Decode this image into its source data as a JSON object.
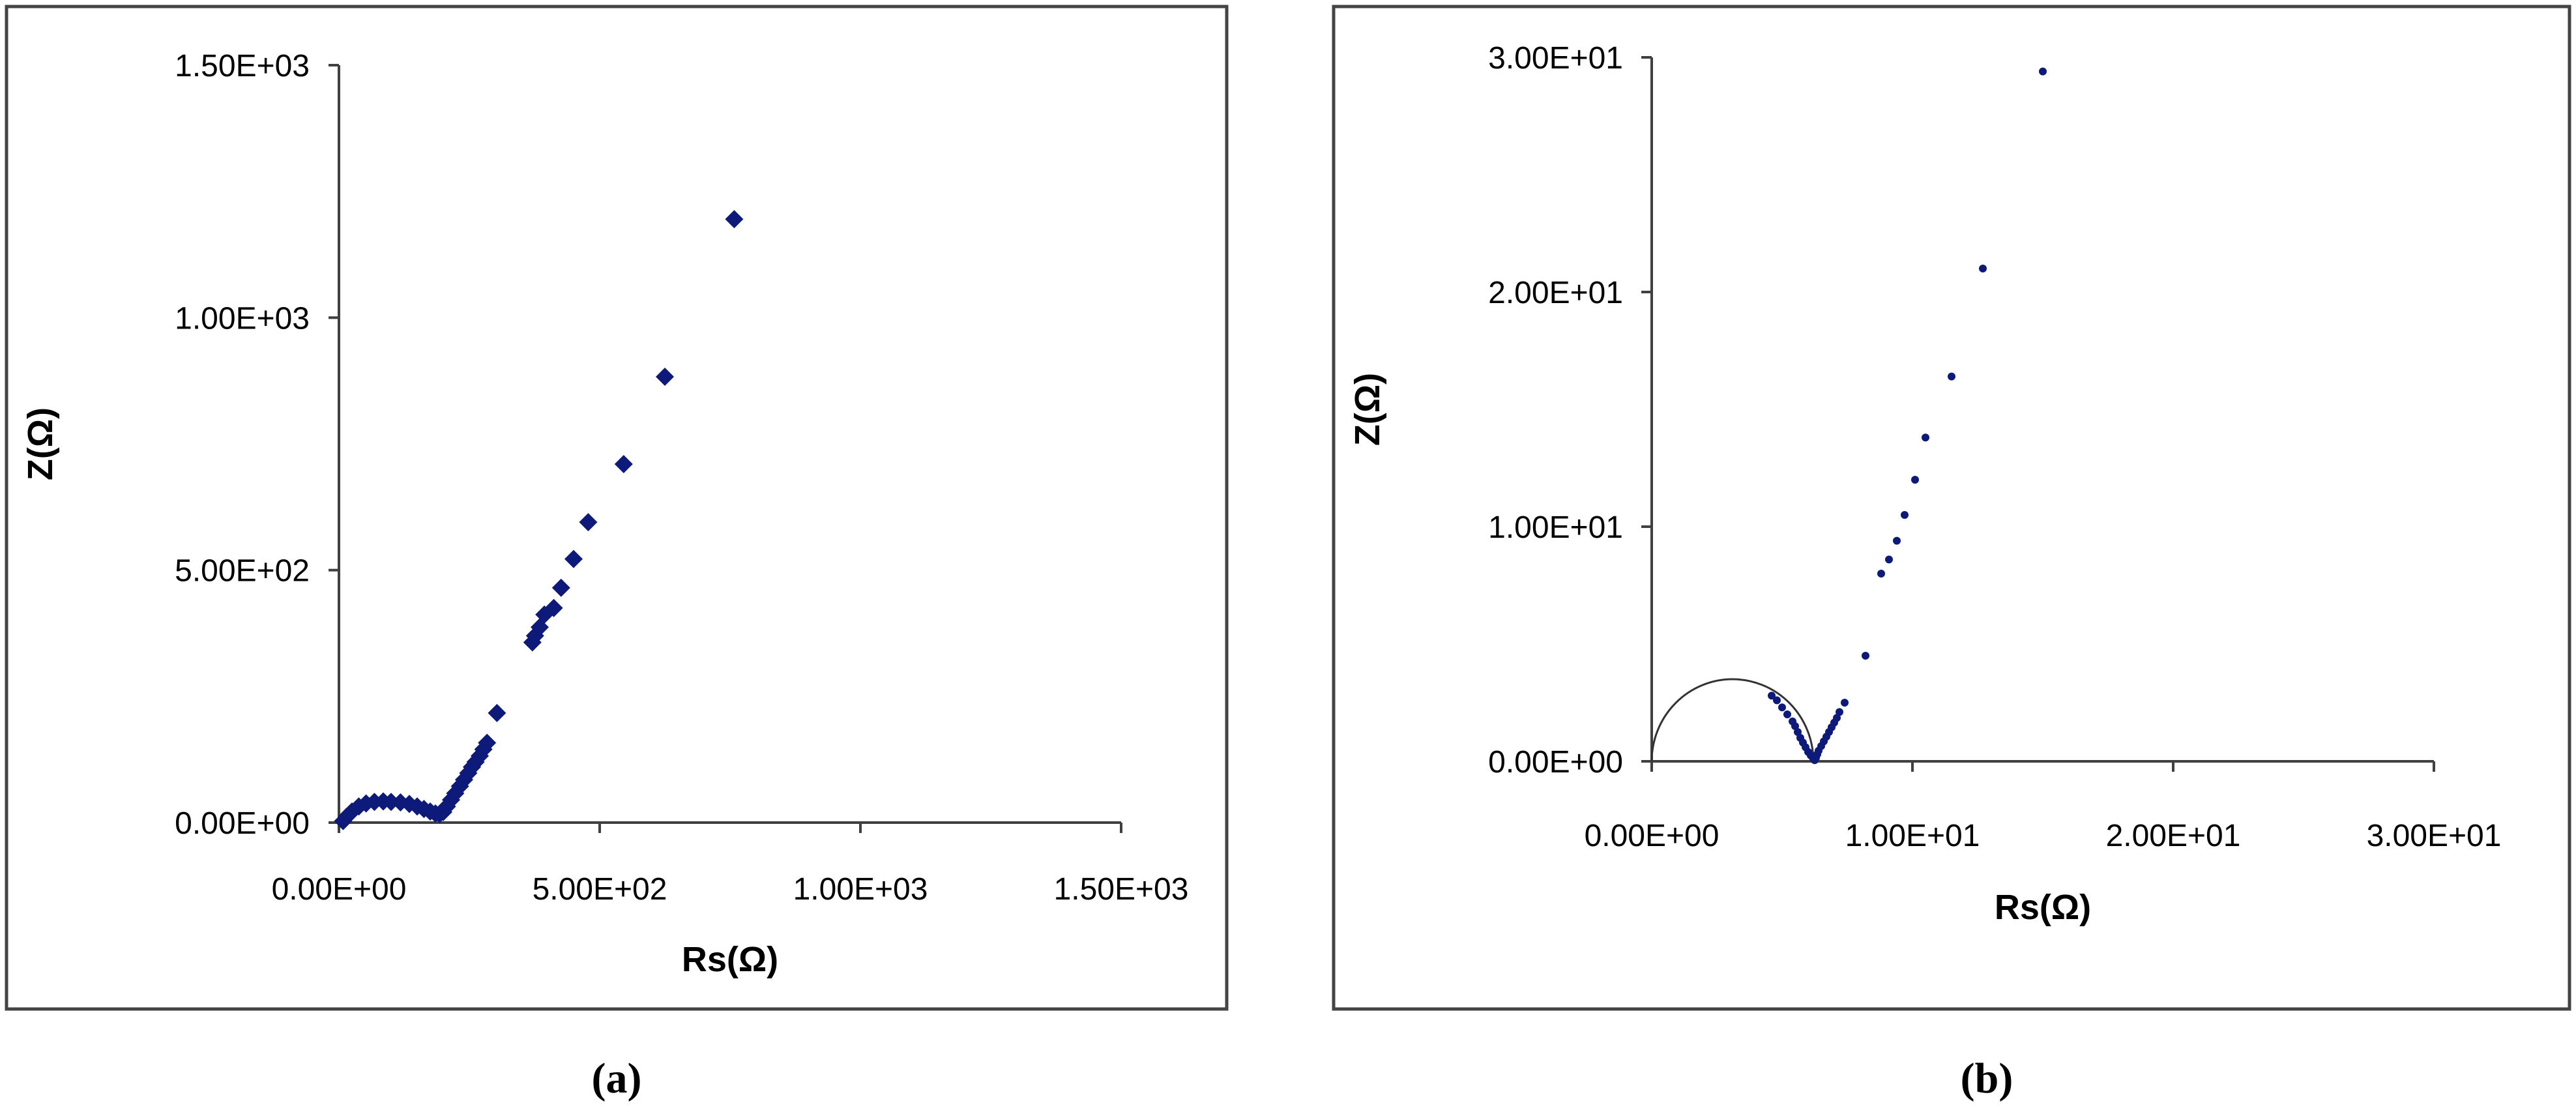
{
  "chart_data": [
    {
      "type": "scatter",
      "caption": "(a)",
      "title": "",
      "xlabel": "Rs(Ω)",
      "ylabel": "Z(Ω)",
      "xlim": [
        0,
        1500
      ],
      "ylim": [
        0,
        1500
      ],
      "x_ticks": [
        "0.00E+00",
        "5.00E+02",
        "1.00E+03",
        "1.50E+03"
      ],
      "y_ticks": [
        "0.00E+00",
        "5.00E+02",
        "1.00E+03",
        "1.50E+03"
      ],
      "grid": false,
      "legend": "none",
      "marker": "diamond",
      "series": [
        {
          "x": [
            8,
            15,
            25,
            38,
            52,
            68,
            85,
            100,
            118,
            135,
            150,
            163,
            175,
            185,
            193,
            200,
            207,
            215,
            223,
            232,
            240,
            248,
            255,
            262,
            270,
            277,
            284,
            303,
            371,
            376,
            385,
            394,
            412,
            426,
            450,
            478,
            546,
            625,
            758
          ],
          "y": [
            3,
            12,
            22,
            32,
            38,
            41,
            42,
            41,
            40,
            37,
            32,
            27,
            22,
            18,
            17,
            21,
            32,
            45,
            58,
            72,
            85,
            98,
            110,
            120,
            132,
            145,
            158,
            217,
            357,
            370,
            387,
            412,
            425,
            465,
            522,
            595,
            710,
            883,
            1195
          ]
        }
      ]
    },
    {
      "type": "scatter",
      "caption": "(b)",
      "title": "",
      "xlabel": "Rs(Ω)",
      "ylabel": "Z(Ω)",
      "xlim": [
        0,
        30
      ],
      "ylim": [
        0,
        30
      ],
      "x_ticks": [
        "0.00E+00",
        "1.00E+01",
        "2.00E+01",
        "3.00E+01"
      ],
      "y_ticks": [
        "0.00E+00",
        "1.00E+01",
        "2.00E+01",
        "3.00E+01"
      ],
      "grid": false,
      "legend": "none",
      "marker": "dot",
      "fitted_arc": {
        "x_min": 0,
        "x_max": 6.2,
        "peak_y": 3.5
      },
      "series": [
        {
          "x": [
            4.6,
            4.8,
            5.0,
            5.2,
            5.4,
            5.5,
            5.6,
            5.7,
            5.8,
            5.9,
            6.0,
            6.1,
            6.2,
            6.25,
            6.3,
            6.35,
            6.4,
            6.5,
            6.6,
            6.7,
            6.8,
            6.9,
            7.0,
            7.1,
            7.2,
            7.4,
            8.2,
            8.8,
            9.1,
            9.4,
            9.7,
            10.1,
            10.5,
            11.5,
            12.7,
            15.0
          ],
          "y": [
            2.8,
            2.6,
            2.3,
            2.0,
            1.7,
            1.5,
            1.25,
            1.0,
            0.8,
            0.6,
            0.4,
            0.25,
            0.1,
            0.05,
            0.15,
            0.3,
            0.45,
            0.65,
            0.85,
            1.05,
            1.25,
            1.45,
            1.65,
            1.85,
            2.1,
            2.5,
            4.5,
            8.0,
            8.6,
            9.4,
            10.5,
            12.0,
            13.8,
            16.4,
            21.0,
            29.4
          ]
        }
      ]
    }
  ],
  "colors": {
    "marker": "#0d1a7a",
    "axis": "#404040",
    "frame": "#444444",
    "arc": "#333333"
  }
}
